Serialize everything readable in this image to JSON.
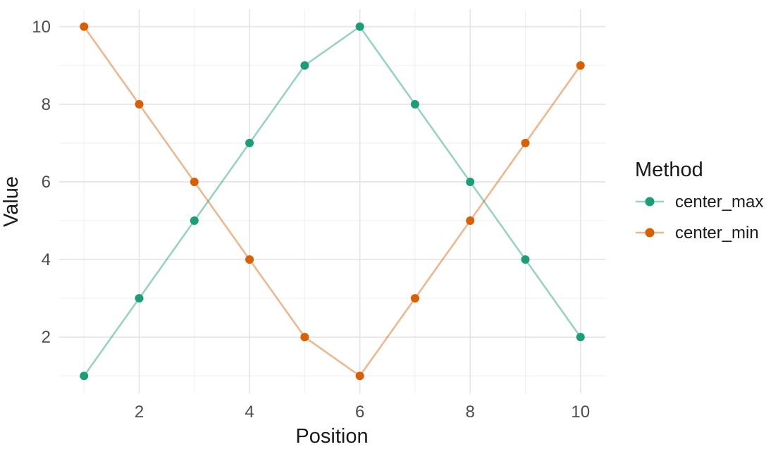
{
  "chart_data": {
    "type": "line",
    "xlabel": "Position",
    "ylabel": "Value",
    "x": [
      1,
      2,
      3,
      4,
      5,
      6,
      7,
      8,
      9,
      10
    ],
    "series": [
      {
        "name": "center_max",
        "color": "#1B9E77",
        "values": [
          1,
          3,
          5,
          7,
          9,
          10,
          8,
          6,
          4,
          2
        ]
      },
      {
        "name": "center_min",
        "color": "#D95F02",
        "values": [
          10,
          8,
          6,
          4,
          2,
          1,
          3,
          5,
          7,
          9
        ]
      }
    ],
    "x_ticks": [
      2,
      4,
      6,
      8,
      10
    ],
    "y_ticks": [
      2,
      4,
      6,
      8,
      10
    ],
    "x_minor_ticks": [
      1,
      3,
      5,
      7,
      9
    ],
    "y_minor_ticks": [
      1,
      3,
      5,
      7,
      9
    ],
    "xlim": [
      0.55,
      10.45
    ],
    "ylim": [
      0.55,
      10.45
    ],
    "grid": "on",
    "legend": {
      "title": "Method",
      "position": "right",
      "entries": [
        "center_max",
        "center_min"
      ]
    },
    "style": {
      "background": "#FFFFFF",
      "grid_major_color": "#E5E5E5",
      "grid_minor_color": "#F0F0F0",
      "tick_label_color": "#4D4D4D",
      "text_color": "#1A1A1A",
      "line_opacity": 0.45,
      "point_radius": 6,
      "line_width": 2.6
    }
  }
}
